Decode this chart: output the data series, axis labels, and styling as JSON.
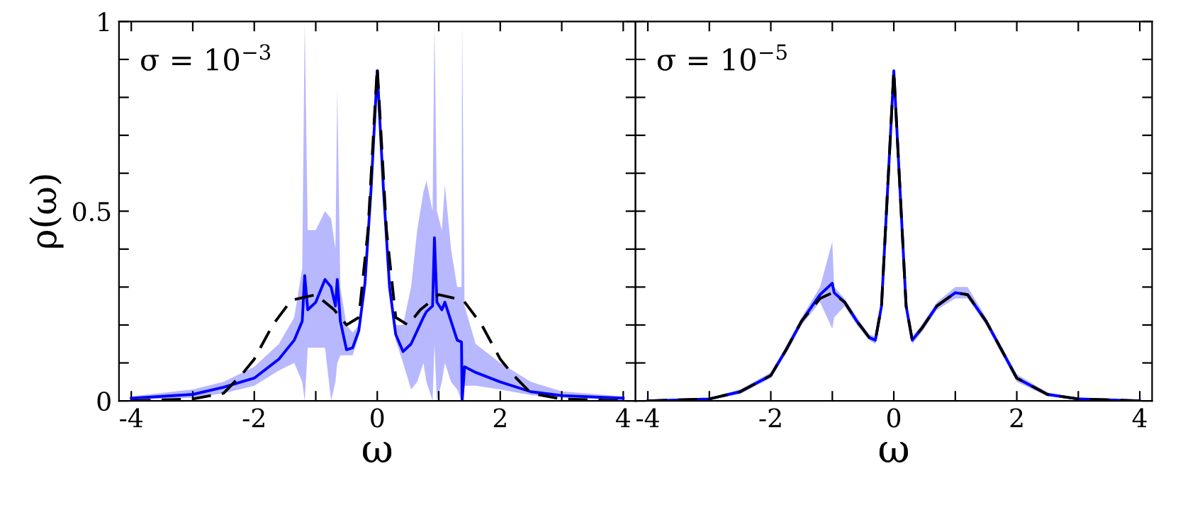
{
  "chart_data": [
    {
      "type": "line",
      "xlabel": "ω",
      "ylabel": "ρ(ω)",
      "annotations": [
        "σ = 10$^{−3}$"
      ],
      "xlim": [
        -4.2,
        4.2
      ],
      "ylim": [
        0,
        1
      ],
      "xticks": [
        {
          "value": -4,
          "label": "-4"
        },
        {
          "value": -3,
          "label": null
        },
        {
          "value": -2,
          "label": "-2"
        },
        {
          "value": -1,
          "label": null
        },
        0,
        {
          "value": 1,
          "label": null
        },
        2,
        {
          "value": 3,
          "label": null
        },
        4
      ],
      "yticks": [
        0,
        {
          "value": 0.1,
          "label": null
        },
        {
          "value": 0.2,
          "label": null
        },
        {
          "value": 0.3,
          "label": null
        },
        {
          "value": 0.4,
          "label": null
        },
        0.5,
        {
          "value": 0.6,
          "label": null
        },
        {
          "value": 0.7,
          "label": null
        },
        {
          "value": 0.8,
          "label": null
        },
        {
          "value": 0.9,
          "label": null
        },
        1
      ],
      "grid": false,
      "legend": false,
      "marker": "none",
      "series": [
        {
          "color": "#0000ff",
          "line_style": "solid",
          "x": [
            -4,
            -3,
            -2.5,
            -2,
            -1.6,
            -1.35,
            -1.22,
            -1.18,
            -1.13,
            -1.0,
            -0.85,
            -0.75,
            -0.68,
            -0.65,
            -0.6,
            -0.5,
            -0.4,
            -0.3,
            -0.2,
            -0.1,
            0,
            0.1,
            0.2,
            0.3,
            0.42,
            0.55,
            0.65,
            0.75,
            0.8,
            0.9,
            0.93,
            0.97,
            1.05,
            1.1,
            1.2,
            1.3,
            1.37,
            1.38,
            1.42,
            1.6,
            2,
            2.5,
            3,
            4
          ],
          "values": [
            0.007,
            0.017,
            0.036,
            0.06,
            0.11,
            0.16,
            0.21,
            0.33,
            0.24,
            0.26,
            0.32,
            0.3,
            0.25,
            0.32,
            0.21,
            0.135,
            0.14,
            0.185,
            0.31,
            0.56,
            0.87,
            0.56,
            0.3,
            0.175,
            0.13,
            0.15,
            0.185,
            0.22,
            0.235,
            0.25,
            0.43,
            0.26,
            0.24,
            0.26,
            0.21,
            0.16,
            0.155,
            0,
            0.09,
            0.075,
            0.05,
            0.024,
            0.014,
            0.007
          ],
          "upper": [
            0.012,
            0.03,
            0.05,
            0.09,
            0.15,
            0.22,
            0.35,
            1.0,
            0.45,
            0.45,
            0.5,
            0.48,
            0.4,
            0.82,
            0.3,
            0.2,
            0.18,
            0.2,
            0.32,
            0.57,
            0.88,
            0.57,
            0.32,
            0.2,
            0.2,
            0.3,
            0.45,
            0.55,
            0.58,
            0.5,
            1.0,
            0.5,
            0.45,
            0.57,
            0.4,
            0.3,
            0.3,
            1.0,
            0.25,
            0.15,
            0.1,
            0.05,
            0.025,
            0.012
          ],
          "lower": [
            0.003,
            0.008,
            0.02,
            0.04,
            0.08,
            0.1,
            0.05,
            0,
            0.14,
            0.14,
            0.14,
            0,
            0.05,
            0.1,
            0.12,
            0.12,
            0.12,
            0.17,
            0.3,
            0.55,
            0.86,
            0.55,
            0.29,
            0.16,
            0.1,
            0.03,
            0.05,
            0.1,
            0.05,
            0,
            0.15,
            0,
            0.05,
            0.1,
            0.05,
            0.03,
            0,
            0,
            0.04,
            0.04,
            0.03,
            0.015,
            0.008,
            0.003
          ]
        },
        {
          "color": "#000000",
          "line_style": "dashed",
          "x": [
            -4,
            -3,
            -2.5,
            -2.2,
            -2,
            -1.7,
            -1.4,
            -1.0,
            -0.7,
            -0.5,
            -0.3,
            -0.15,
            0,
            0.15,
            0.3,
            0.5,
            0.7,
            1.0,
            1.4,
            1.7,
            2,
            2.2,
            2.5,
            3,
            4
          ],
          "values": [
            0,
            0.005,
            0.02,
            0.07,
            0.11,
            0.2,
            0.265,
            0.28,
            0.24,
            0.2,
            0.22,
            0.45,
            0.88,
            0.45,
            0.22,
            0.2,
            0.24,
            0.28,
            0.265,
            0.2,
            0.11,
            0.07,
            0.02,
            0.005,
            0
          ]
        }
      ]
    },
    {
      "type": "line",
      "xlabel": "ω",
      "annotations": [
        "σ = 10$^{−5}$"
      ],
      "xlim": [
        -4.2,
        4.2
      ],
      "ylim": [
        0,
        1
      ],
      "tick_labels": "x",
      "xticks": [
        {
          "value": -4,
          "label": "-4"
        },
        {
          "value": -3,
          "label": null
        },
        {
          "value": -2,
          "label": "-2"
        },
        {
          "value": -1,
          "label": null
        },
        0,
        {
          "value": 1,
          "label": null
        },
        2,
        {
          "value": 3,
          "label": null
        },
        4
      ],
      "yticks": [
        0,
        {
          "value": 0.1,
          "label": null
        },
        {
          "value": 0.2,
          "label": null
        },
        {
          "value": 0.3,
          "label": null
        },
        {
          "value": 0.4,
          "label": null
        },
        0.5,
        {
          "value": 0.6,
          "label": null
        },
        {
          "value": 0.7,
          "label": null
        },
        {
          "value": 0.8,
          "label": null
        },
        {
          "value": 0.9,
          "label": null
        },
        1
      ],
      "grid": false,
      "legend": false,
      "marker": "none",
      "series": [
        {
          "color": "#0000ff",
          "line_style": "solid",
          "x": [
            -4,
            -3,
            -2.5,
            -2,
            -1.75,
            -1.5,
            -1.2,
            -1.0,
            -0.97,
            -0.8,
            -0.6,
            -0.4,
            -0.3,
            -0.2,
            -0.1,
            0,
            0.1,
            0.2,
            0.3,
            0.45,
            0.7,
            1.0,
            1.2,
            1.5,
            1.75,
            2,
            2.5,
            3,
            4
          ],
          "values": [
            0,
            0.005,
            0.024,
            0.067,
            0.135,
            0.21,
            0.28,
            0.31,
            0.285,
            0.26,
            0.21,
            0.167,
            0.16,
            0.25,
            0.56,
            0.87,
            0.56,
            0.25,
            0.16,
            0.19,
            0.25,
            0.285,
            0.28,
            0.21,
            0.135,
            0.06,
            0.017,
            0.005,
            0
          ],
          "upper": [
            0.002,
            0.008,
            0.03,
            0.075,
            0.145,
            0.22,
            0.3,
            0.42,
            0.3,
            0.27,
            0.22,
            0.175,
            0.17,
            0.26,
            0.57,
            0.88,
            0.57,
            0.26,
            0.17,
            0.2,
            0.26,
            0.3,
            0.3,
            0.22,
            0.145,
            0.07,
            0.022,
            0.008,
            0.002
          ],
          "lower": [
            0,
            0.003,
            0.018,
            0.06,
            0.125,
            0.2,
            0.26,
            0.19,
            0.22,
            0.25,
            0.2,
            0.16,
            0.15,
            0.24,
            0.55,
            0.86,
            0.55,
            0.24,
            0.15,
            0.18,
            0.24,
            0.27,
            0.27,
            0.2,
            0.125,
            0.05,
            0.012,
            0.003,
            0
          ]
        },
        {
          "color": "#000000",
          "line_style": "dashed",
          "x": [
            -4,
            -3,
            -2.5,
            -2,
            -1.75,
            -1.5,
            -1.2,
            -1.0,
            -0.8,
            -0.6,
            -0.4,
            -0.3,
            -0.2,
            -0.1,
            0,
            0.1,
            0.2,
            0.3,
            0.45,
            0.7,
            1.0,
            1.2,
            1.5,
            1.75,
            2,
            2.5,
            3,
            4
          ],
          "values": [
            0,
            0.005,
            0.024,
            0.067,
            0.135,
            0.21,
            0.27,
            0.285,
            0.26,
            0.21,
            0.167,
            0.16,
            0.25,
            0.56,
            0.87,
            0.56,
            0.25,
            0.16,
            0.19,
            0.25,
            0.285,
            0.28,
            0.21,
            0.135,
            0.06,
            0.017,
            0.005,
            0
          ]
        }
      ]
    }
  ]
}
